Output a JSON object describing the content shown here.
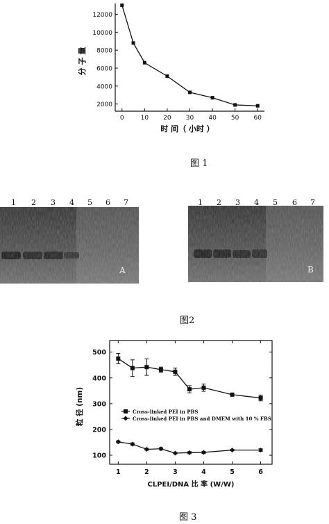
{
  "figure1": {
    "caption": "图 1",
    "chart_data": {
      "type": "line",
      "title": "",
      "xlabel": "时 间（ 小时 ）",
      "ylabel": "分 子 量",
      "xlim": [
        -3,
        63
      ],
      "ylim": [
        1200,
        13200
      ],
      "xticks": [
        0,
        10,
        20,
        30,
        40,
        50,
        60
      ],
      "yticks": [
        2000,
        4000,
        6000,
        8000,
        10000,
        12000
      ],
      "series": [
        {
          "name": "",
          "x": [
            0,
            5,
            10,
            20,
            30,
            40,
            50,
            60
          ],
          "y": [
            13000,
            8800,
            6600,
            5100,
            3300,
            2700,
            1900,
            1800
          ]
        }
      ]
    }
  },
  "figure2": {
    "caption": "图2",
    "panelA": {
      "label": "A",
      "lanes": [
        "1",
        "2",
        "3",
        "4",
        "5",
        "6",
        "7"
      ]
    },
    "panelB": {
      "label": "B",
      "lanes": [
        "1",
        "2",
        "3",
        "4",
        "5",
        "6",
        "7"
      ]
    }
  },
  "figure3": {
    "caption": "图 3",
    "chart_data": {
      "type": "line",
      "title": "",
      "xlabel": "CLPEI/DNA 比 率 (W/W)",
      "ylabel": "粒 径 (nm)",
      "xlim": [
        0.7,
        6.4
      ],
      "ylim": [
        65,
        545
      ],
      "xticks": [
        1,
        2,
        3,
        4,
        5,
        6
      ],
      "yticks": [
        100,
        200,
        300,
        400,
        500
      ],
      "legend_position": "middle-left",
      "series": [
        {
          "name": "Cross-linked PEI in PBS",
          "marker": "square",
          "x": [
            1,
            1.5,
            2,
            2.5,
            3,
            3.5,
            4,
            5,
            6
          ],
          "y": [
            475,
            438,
            442,
            432,
            424,
            356,
            362,
            335,
            322
          ],
          "err": [
            20,
            32,
            32,
            10,
            14,
            14,
            14,
            4,
            11
          ]
        },
        {
          "name": "Cross-linked PEI in PBS and DMEM with 10 % FBS",
          "marker": "diamond",
          "x": [
            1,
            1.5,
            2,
            2.5,
            3,
            3.5,
            4,
            5,
            6
          ],
          "y": [
            152,
            143,
            123,
            125,
            108,
            110,
            111,
            120,
            120
          ],
          "err": [
            4,
            5,
            4,
            5,
            3,
            4,
            4,
            3,
            5
          ]
        }
      ]
    }
  }
}
